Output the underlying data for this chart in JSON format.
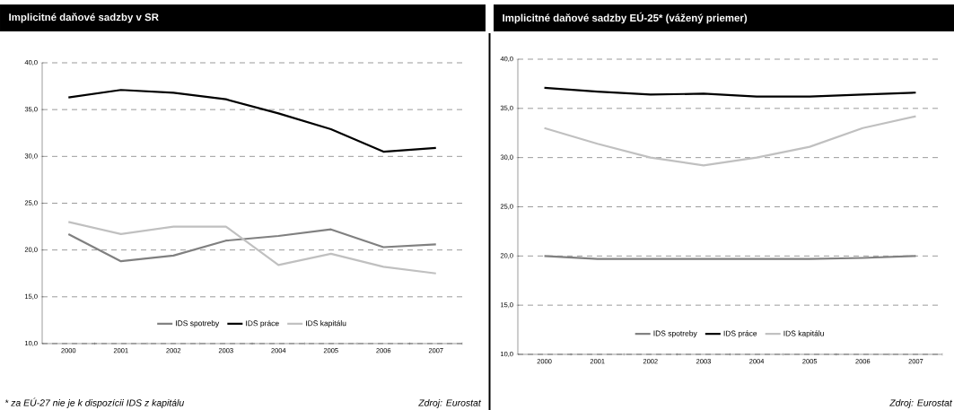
{
  "chart_data": [
    {
      "type": "line",
      "title": "Implicitné daňové sadzby v SR",
      "categories": [
        "2000",
        "2001",
        "2002",
        "2003",
        "2004",
        "2005",
        "2006",
        "2007"
      ],
      "series": [
        {
          "name": "IDS spotreby",
          "color": "#808080",
          "values": [
            21.7,
            18.8,
            19.4,
            21.0,
            21.5,
            22.2,
            20.3,
            20.6
          ]
        },
        {
          "name": "IDS práce",
          "color": "#000000",
          "values": [
            36.3,
            37.1,
            36.8,
            36.1,
            34.6,
            32.9,
            30.5,
            30.9
          ]
        },
        {
          "name": "IDS kapitálu",
          "color": "#c0c0c0",
          "values": [
            23.0,
            21.7,
            22.5,
            22.5,
            18.4,
            19.6,
            18.2,
            17.5
          ]
        }
      ],
      "ylim": [
        10,
        40
      ],
      "yticks": [
        {
          "value": 10,
          "label": "10,0"
        },
        {
          "value": 15,
          "label": "15,0"
        },
        {
          "value": 20,
          "label": "20,0"
        },
        {
          "value": 25,
          "label": "25,0"
        },
        {
          "value": 30,
          "label": "30,0"
        },
        {
          "value": 35,
          "label": "35,0"
        },
        {
          "value": 40,
          "label": "40,0"
        }
      ],
      "grid": "y",
      "legend": "bottom",
      "line_style": "solid",
      "annotations": [
        "* za EÚ-27 nie je k dispozícii IDS z kapitálu",
        "Zdroj: Eurostat"
      ]
    },
    {
      "type": "line",
      "title": "Implicitné daňové sadzby  EÚ-25*  (vážený priemer)",
      "categories": [
        "2000",
        "2001",
        "2002",
        "2003",
        "2004",
        "2005",
        "2006",
        "2007"
      ],
      "series": [
        {
          "name": "IDS spotreby",
          "color": "#808080",
          "values": [
            20.0,
            19.7,
            19.7,
            19.7,
            19.7,
            19.7,
            19.8,
            20.0
          ]
        },
        {
          "name": "IDS práce",
          "color": "#000000",
          "values": [
            37.1,
            36.7,
            36.4,
            36.5,
            36.2,
            36.2,
            36.4,
            36.6
          ]
        },
        {
          "name": "IDS kapitálu",
          "color": "#c0c0c0",
          "values": [
            33.0,
            31.4,
            30.0,
            29.2,
            30.0,
            31.1,
            33.0,
            34.2
          ]
        }
      ],
      "ylim": [
        10,
        40
      ],
      "yticks": [
        {
          "value": 10,
          "label": "10,0"
        },
        {
          "value": 15,
          "label": "15,0"
        },
        {
          "value": 20,
          "label": "20,0"
        },
        {
          "value": 25,
          "label": "25,0"
        },
        {
          "value": 30,
          "label": "30,0"
        },
        {
          "value": 35,
          "label": "35,0"
        },
        {
          "value": 40,
          "label": "40,0"
        }
      ],
      "grid": "y",
      "legend": "bottom",
      "line_style": "solid",
      "annotations": [
        "Zdroj: Eurostat"
      ]
    }
  ]
}
